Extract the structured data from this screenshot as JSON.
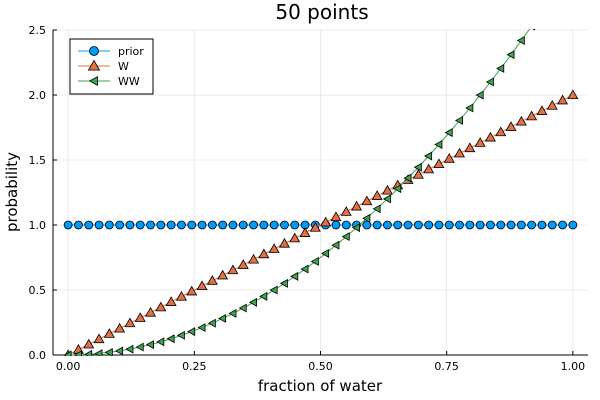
{
  "chart_data": {
    "type": "line",
    "title": "50 points",
    "xlabel": "fraction of water",
    "ylabel": "probability",
    "xlim": [
      -0.03,
      1.03
    ],
    "ylim": [
      0,
      2.5
    ],
    "xticks": [
      0.0,
      0.25,
      0.5,
      0.75,
      1.0
    ],
    "xtick_labels": [
      "0.00",
      "0.25",
      "0.50",
      "0.75",
      "1.00"
    ],
    "yticks": [
      0.0,
      0.5,
      1.0,
      1.5,
      2.0,
      2.5
    ],
    "ytick_labels": [
      "0.0",
      "0.5",
      "1.0",
      "1.5",
      "2.0",
      "2.5"
    ],
    "grid": true,
    "legend_position": "top-left",
    "x_points": 50,
    "x_range": [
      0,
      1
    ],
    "series": [
      {
        "name": "prior",
        "formula": "1",
        "color": "#009AFA",
        "marker": "circle"
      },
      {
        "name": "W",
        "formula": "2*p",
        "color": "#E26F46",
        "marker": "triangle-up"
      },
      {
        "name": "WW",
        "formula": "3*p^2",
        "color": "#3EA44E",
        "marker": "triangle-left"
      }
    ]
  }
}
